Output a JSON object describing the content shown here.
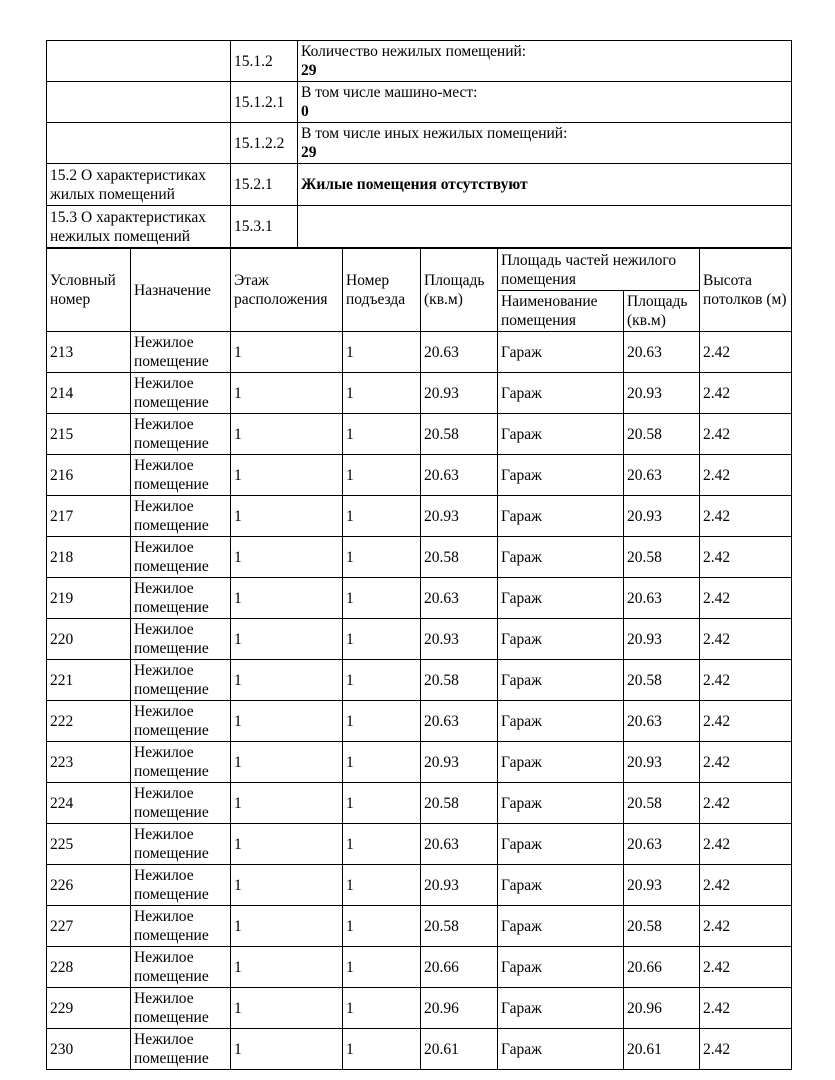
{
  "page": {
    "background_color": "#ffffff",
    "text_color": "#000000",
    "border_color": "#000000"
  },
  "top_table": {
    "rows": [
      {
        "section": "",
        "code": "15.1.2",
        "label": "Количество нежилых помещений:",
        "value": "29"
      },
      {
        "section": "",
        "code": "15.1.2.1",
        "label": "В том числе машино-мест:",
        "value": "0"
      },
      {
        "section": "",
        "code": "15.1.2.2",
        "label": "В том числе иных нежилых помещений:",
        "value": "29"
      },
      {
        "section": "15.2 О характеристиках жилых помещений",
        "code": "15.2.1",
        "label": "",
        "value": "Жилые помещения отсутствуют"
      },
      {
        "section": "15.3 О характеристиках нежилых помещений",
        "code": "15.3.1",
        "label": "",
        "value": ""
      }
    ]
  },
  "premises_table": {
    "headers": {
      "conditional_number": "Условный номер",
      "purpose": "Назначение",
      "floor": "Этаж расположения",
      "entrance": "Номер подъезда",
      "area": "Площадь (кв.м)",
      "parts_group": "Площадь частей нежилого помещения",
      "part_name": "Наименование помещения",
      "part_area": "Площадь (кв.м)",
      "ceiling_height": "Высота потолков (м)"
    },
    "rows": [
      {
        "num": "213",
        "purpose": "Нежилое помещение",
        "floor": "1",
        "entrance": "1",
        "area": "20.63",
        "part_name": "Гараж",
        "part_area": "20.63",
        "height": "2.42"
      },
      {
        "num": "214",
        "purpose": "Нежилое помещение",
        "floor": "1",
        "entrance": "1",
        "area": "20.93",
        "part_name": "Гараж",
        "part_area": "20.93",
        "height": "2.42"
      },
      {
        "num": "215",
        "purpose": "Нежилое помещение",
        "floor": "1",
        "entrance": "1",
        "area": "20.58",
        "part_name": "Гараж",
        "part_area": "20.58",
        "height": "2.42"
      },
      {
        "num": "216",
        "purpose": "Нежилое помещение",
        "floor": "1",
        "entrance": "1",
        "area": "20.63",
        "part_name": "Гараж",
        "part_area": "20.63",
        "height": "2.42"
      },
      {
        "num": "217",
        "purpose": "Нежилое помещение",
        "floor": "1",
        "entrance": "1",
        "area": "20.93",
        "part_name": "Гараж",
        "part_area": "20.93",
        "height": "2.42"
      },
      {
        "num": "218",
        "purpose": "Нежилое помещение",
        "floor": "1",
        "entrance": "1",
        "area": "20.58",
        "part_name": "Гараж",
        "part_area": "20.58",
        "height": "2.42"
      },
      {
        "num": "219",
        "purpose": "Нежилое помещение",
        "floor": "1",
        "entrance": "1",
        "area": "20.63",
        "part_name": "Гараж",
        "part_area": "20.63",
        "height": "2.42"
      },
      {
        "num": "220",
        "purpose": "Нежилое помещение",
        "floor": "1",
        "entrance": "1",
        "area": "20.93",
        "part_name": "Гараж",
        "part_area": "20.93",
        "height": "2.42"
      },
      {
        "num": "221",
        "purpose": "Нежилое помещение",
        "floor": "1",
        "entrance": "1",
        "area": "20.58",
        "part_name": "Гараж",
        "part_area": "20.58",
        "height": "2.42"
      },
      {
        "num": "222",
        "purpose": "Нежилое помещение",
        "floor": "1",
        "entrance": "1",
        "area": "20.63",
        "part_name": "Гараж",
        "part_area": "20.63",
        "height": "2.42"
      },
      {
        "num": "223",
        "purpose": "Нежилое помещение",
        "floor": "1",
        "entrance": "1",
        "area": "20.93",
        "part_name": "Гараж",
        "part_area": "20.93",
        "height": "2.42"
      },
      {
        "num": "224",
        "purpose": "Нежилое помещение",
        "floor": "1",
        "entrance": "1",
        "area": "20.58",
        "part_name": "Гараж",
        "part_area": "20.58",
        "height": "2.42"
      },
      {
        "num": "225",
        "purpose": "Нежилое помещение",
        "floor": "1",
        "entrance": "1",
        "area": "20.63",
        "part_name": "Гараж",
        "part_area": "20.63",
        "height": "2.42"
      },
      {
        "num": "226",
        "purpose": "Нежилое помещение",
        "floor": "1",
        "entrance": "1",
        "area": "20.93",
        "part_name": "Гараж",
        "part_area": "20.93",
        "height": "2.42"
      },
      {
        "num": "227",
        "purpose": "Нежилое помещение",
        "floor": "1",
        "entrance": "1",
        "area": "20.58",
        "part_name": "Гараж",
        "part_area": "20.58",
        "height": "2.42"
      },
      {
        "num": "228",
        "purpose": "Нежилое помещение",
        "floor": "1",
        "entrance": "1",
        "area": "20.66",
        "part_name": "Гараж",
        "part_area": "20.66",
        "height": "2.42"
      },
      {
        "num": "229",
        "purpose": "Нежилое помещение",
        "floor": "1",
        "entrance": "1",
        "area": "20.96",
        "part_name": "Гараж",
        "part_area": "20.96",
        "height": "2.42"
      },
      {
        "num": "230",
        "purpose": "Нежилое помещение",
        "floor": "1",
        "entrance": "1",
        "area": "20.61",
        "part_name": "Гараж",
        "part_area": "20.61",
        "height": "2.42"
      }
    ]
  }
}
